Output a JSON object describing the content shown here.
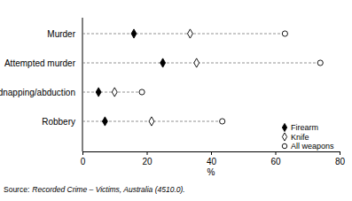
{
  "chart_data": {
    "type": "dot",
    "orientation": "horizontal",
    "categories": [
      "Murder",
      "Attempted murder",
      "Kidnapping/abduction",
      "Robbery"
    ],
    "series": [
      {
        "name": "Firearm",
        "color": "#000000",
        "marker": "filled-diamond",
        "values": [
          16,
          25,
          5,
          7
        ]
      },
      {
        "name": "Knife",
        "color": "#000000",
        "marker": "open-diamond",
        "values": [
          33.5,
          35.5,
          10,
          21.5
        ]
      },
      {
        "name": "All weapons",
        "color": "#000000",
        "marker": "open-circle",
        "values": [
          63,
          74,
          18.5,
          43.5
        ]
      }
    ],
    "xlim": [
      0,
      80
    ],
    "xticks": [
      0,
      20,
      40,
      60,
      80
    ],
    "x_label": "%",
    "legend": "bottom-right",
    "source_label": "Source:",
    "source": "Recorded Crime – Victims, Australia (4510.0)."
  }
}
